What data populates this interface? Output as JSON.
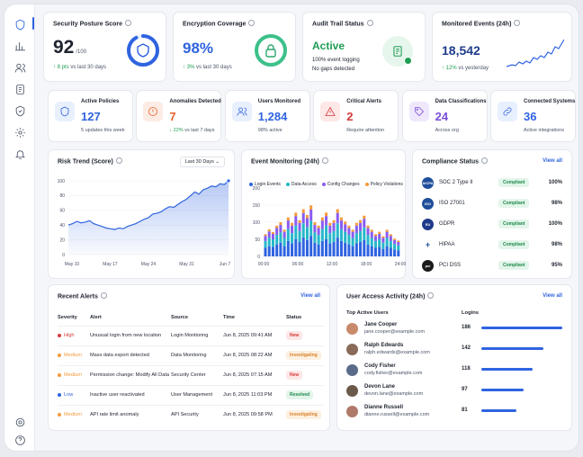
{
  "kpis_top": [
    {
      "title": "Security Posture Score",
      "value": "92",
      "value_suffix": "/100",
      "delta": "↑ 8 pts",
      "delta_text": "vs last 30 days",
      "ring_fraction": 0.92,
      "icon": "shield-icon"
    },
    {
      "title": "Encryption Coverage",
      "value": "98%",
      "delta": "↑ 3%",
      "delta_text": "vs last 30 days",
      "ring_fraction": 0.98,
      "icon": "lock-icon"
    },
    {
      "title": "Audit Trail Status",
      "value": "Active",
      "line1": "100% event logging",
      "line2": "No gaps detected",
      "icon": "document-check-icon"
    },
    {
      "title": "Monitored Events (24h)",
      "value": "18,542",
      "delta": "↑ 12%",
      "delta_text": "vs yesterday"
    }
  ],
  "kpis_mid": [
    {
      "title": "Active Policies",
      "value": "127",
      "sub": "5 updates this week",
      "icon": "shield-icon",
      "color": "#2f63e0",
      "bg": "#e8effd"
    },
    {
      "title": "Anomalies Detected",
      "value": "7",
      "delta": "↓ 22%",
      "sub": "vs last 7 days",
      "icon": "alert-circle-icon",
      "color": "#e8622c",
      "bg": "#fdece4"
    },
    {
      "title": "Users Monitored",
      "value": "1,284",
      "sub": "98% active",
      "icon": "users-icon",
      "color": "#2f63e0",
      "bg": "#e8effd"
    },
    {
      "title": "Critical Alerts",
      "value": "2",
      "sub": "Require attention",
      "icon": "warning-triangle-icon",
      "color": "#d63b3b",
      "bg": "#fde7e7"
    },
    {
      "title": "Data Classifications",
      "value": "24",
      "sub": "Across org",
      "icon": "tag-icon",
      "color": "#7b4fd6",
      "bg": "#efe8fc"
    },
    {
      "title": "Connected Systems",
      "value": "36",
      "sub": "Active integrations",
      "icon": "link-icon",
      "color": "#2f63e0",
      "bg": "#e8effd"
    }
  ],
  "risk_trend": {
    "title": "Risk Trend (Score)",
    "range_select": "Last 30 Days",
    "chart_data": {
      "type": "area",
      "x_ticks": [
        "May 10",
        "May 17",
        "May 24",
        "May 31",
        "Jun 7"
      ],
      "y_ticks": [
        "100",
        "80",
        "60",
        "40",
        "20",
        "0"
      ],
      "ylim": [
        0,
        100
      ],
      "values": [
        40,
        42,
        45,
        43,
        44,
        46,
        42,
        40,
        38,
        36,
        35,
        34,
        36,
        35,
        38,
        40,
        42,
        45,
        48,
        50,
        55,
        56,
        58,
        62,
        65,
        64,
        68,
        72,
        75,
        80,
        85,
        82,
        88,
        90,
        93,
        92,
        96,
        95,
        100
      ]
    }
  },
  "event_monitoring": {
    "title": "Event Monitoring (24h)",
    "legend": [
      {
        "name": "Login Events",
        "color": "#2f63e0"
      },
      {
        "name": "Data Access",
        "color": "#26b7c9"
      },
      {
        "name": "Config Changes",
        "color": "#8a5cf0"
      },
      {
        "name": "Policy Violations",
        "color": "#f39a3c"
      }
    ],
    "chart_data": {
      "type": "bar",
      "stacked": true,
      "x_ticks": [
        "00:00",
        "06:00",
        "12:00",
        "18:00",
        "24:00"
      ],
      "y_ticks": [
        "200",
        "150",
        "100",
        "50",
        "0"
      ],
      "ylim": [
        0,
        200
      ],
      "series": [
        {
          "name": "Login Events",
          "values": [
            25,
            30,
            28,
            35,
            40,
            30,
            45,
            38,
            50,
            42,
            55,
            48,
            60,
            40,
            35,
            45,
            50,
            38,
            42,
            55,
            45,
            40,
            35,
            30,
            38,
            42,
            48,
            35,
            30,
            25,
            28,
            22,
            30,
            25,
            20,
            18
          ]
        },
        {
          "name": "Data Access",
          "values": [
            20,
            25,
            22,
            28,
            30,
            24,
            35,
            30,
            40,
            32,
            42,
            38,
            45,
            30,
            28,
            35,
            40,
            30,
            32,
            42,
            35,
            32,
            28,
            24,
            30,
            32,
            36,
            28,
            24,
            20,
            22,
            18,
            24,
            20,
            16,
            14
          ]
        },
        {
          "name": "Config Changes",
          "values": [
            15,
            18,
            16,
            20,
            22,
            18,
            25,
            22,
            28,
            24,
            30,
            26,
            32,
            22,
            20,
            25,
            28,
            22,
            24,
            30,
            25,
            22,
            20,
            18,
            22,
            24,
            26,
            20,
            18,
            15,
            16,
            14,
            18,
            15,
            12,
            10
          ]
        },
        {
          "name": "Policy Violations",
          "values": [
            5,
            6,
            5,
            7,
            8,
            6,
            9,
            8,
            10,
            8,
            11,
            9,
            12,
            8,
            7,
            9,
            10,
            8,
            8,
            11,
            9,
            8,
            7,
            6,
            8,
            8,
            9,
            7,
            6,
            5,
            6,
            5,
            6,
            5,
            4,
            4
          ]
        }
      ]
    }
  },
  "compliance": {
    "title": "Compliance Status",
    "view_all": "View all",
    "items": [
      {
        "name": "SOC 2 Type II",
        "status": "Compliant",
        "pct": "100%",
        "logo": "AICPA"
      },
      {
        "name": "ISO 27001",
        "status": "Compliant",
        "pct": "98%",
        "logo": "ISO"
      },
      {
        "name": "GDPR",
        "status": "Compliant",
        "pct": "100%",
        "logo": "EU"
      },
      {
        "name": "HIPAA",
        "status": "Compliant",
        "pct": "98%",
        "logo": "+"
      },
      {
        "name": "PCI DSS",
        "status": "Compliant",
        "pct": "95%",
        "logo": "pci"
      }
    ]
  },
  "recent_alerts": {
    "title": "Recent Alerts",
    "view_all": "View all",
    "columns": [
      "Severity",
      "Alert",
      "Source",
      "Time",
      "Status"
    ],
    "rows": [
      {
        "severity": "High",
        "sev_color": "#d63b3b",
        "alert": "Unusual login from new location",
        "source": "Login Monitoring",
        "time": "Jun 8, 2025 09:41 AM",
        "status": "New",
        "st_bg": "#fde7e7",
        "st_color": "#d63b3b"
      },
      {
        "severity": "Medium",
        "sev_color": "#f39a3c",
        "alert": "Mass data export detected",
        "source": "Data Monitoring",
        "time": "Jun 8, 2025 08:22 AM",
        "status": "Investigating",
        "st_bg": "#fdf0e0",
        "st_color": "#d9822b"
      },
      {
        "severity": "Medium",
        "sev_color": "#f39a3c",
        "alert": "Permission change: Modify All Data",
        "source": "Security Center",
        "time": "Jun 8, 2025 07:15 AM",
        "status": "New",
        "st_bg": "#fde7e7",
        "st_color": "#d63b3b"
      },
      {
        "severity": "Low",
        "sev_color": "#2f63e0",
        "alert": "Inactive user reactivated",
        "source": "User Management",
        "time": "Jun 8, 2025 11:03 PM",
        "status": "Resolved",
        "st_bg": "#e3f5ea",
        "st_color": "#1e8a4c"
      },
      {
        "severity": "Medium",
        "sev_color": "#f39a3c",
        "alert": "API rate limit anomaly",
        "source": "API Security",
        "time": "Jun 8, 2025 09:58 PM",
        "status": "Investigating",
        "st_bg": "#fdf0e0",
        "st_color": "#d9822b"
      }
    ]
  },
  "user_access": {
    "title": "User Access Activity (24h)",
    "view_all": "View all",
    "col_users": "Top Active Users",
    "col_logins": "Logins",
    "max_logins": 186,
    "users": [
      {
        "name": "Jane Cooper",
        "email": "jane.cooper@example.com",
        "logins": 186,
        "avatar_color": "#c98a6b"
      },
      {
        "name": "Ralph Edwards",
        "email": "ralph.edwards@example.com",
        "logins": 142,
        "avatar_color": "#8a6b5a"
      },
      {
        "name": "Cody Fisher",
        "email": "cody.fisher@example.com",
        "logins": 118,
        "avatar_color": "#5a6b8a"
      },
      {
        "name": "Devon Lane",
        "email": "devon.lane@example.com",
        "logins": 97,
        "avatar_color": "#6b5a4a"
      },
      {
        "name": "Dianne Russell",
        "email": "dianne.russell@example.com",
        "logins": 81,
        "avatar_color": "#b07a6a"
      }
    ]
  }
}
